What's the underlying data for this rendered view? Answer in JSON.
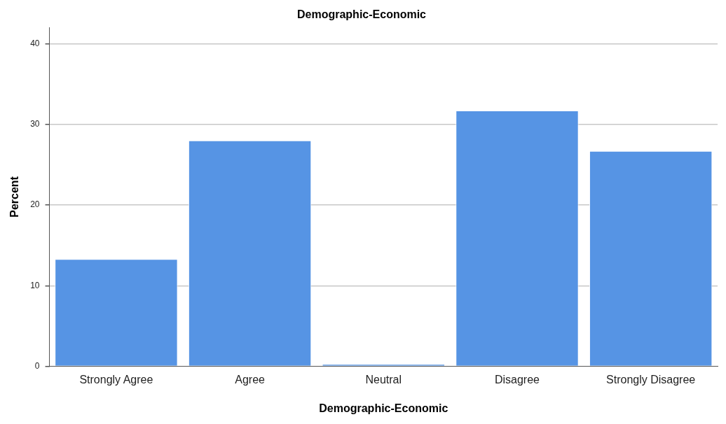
{
  "chart_data": {
    "type": "bar",
    "title": "Demographic-Economic",
    "xlabel": "Demographic-Economic",
    "ylabel": "Percent",
    "categories": [
      "Strongly Agree",
      "Agree",
      "Neutral",
      "Disagree",
      "Strongly Disagree"
    ],
    "values": [
      13.3,
      28.0,
      0.3,
      31.7,
      26.7
    ],
    "color": "#5694e4",
    "ylim": [
      0,
      42
    ],
    "yticks": [
      0,
      10,
      20,
      30,
      40
    ],
    "grid": "y"
  }
}
